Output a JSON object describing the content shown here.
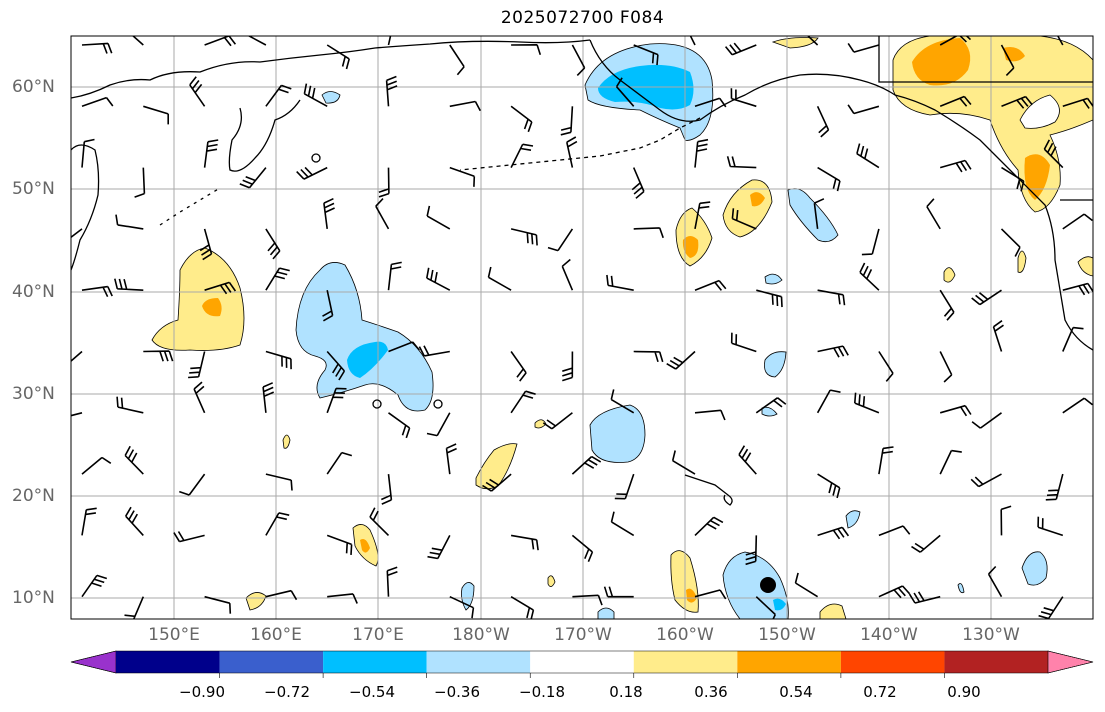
{
  "title": "2025072700 F084",
  "lat_labels": [
    "60°N",
    "50°N",
    "40°N",
    "30°N",
    "20°N",
    "10°N"
  ],
  "lon_labels": [
    "150°E",
    "160°E",
    "170°E",
    "180°W",
    "170°W",
    "160°W",
    "150°W",
    "140°W",
    "130°W"
  ],
  "colorbar": {
    "ticks": [
      "−0.90",
      "−0.72",
      "−0.54",
      "−0.36",
      "−0.18",
      "0.18",
      "0.36",
      "0.54",
      "0.72",
      "0.90"
    ],
    "colors": [
      "#9932cc",
      "#00008b",
      "#3a5fcd",
      "#00bfff",
      "#b0e2ff",
      "#ffffff",
      "#ffec8b",
      "#ffa500",
      "#ff4500",
      "#b22222",
      "#ff82ab"
    ]
  },
  "legend_colors": {
    "light_blue": "#b0e2ff",
    "blue": "#00bfff",
    "yellow": "#ffec8b",
    "orange": "#ffa500",
    "marker": "#000000"
  }
}
